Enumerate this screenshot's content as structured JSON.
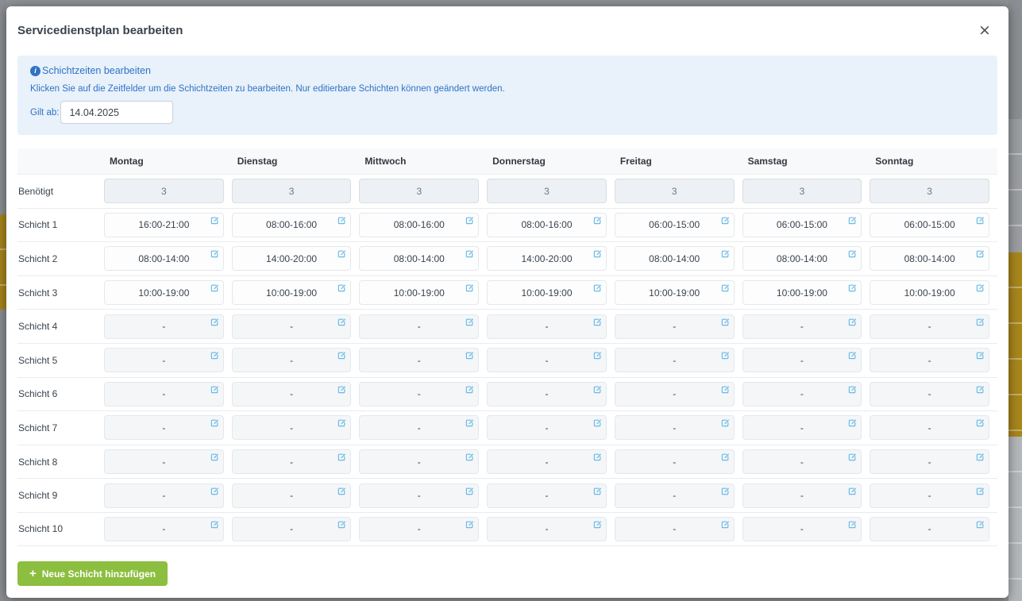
{
  "modal": {
    "title": "Servicedienstplan bearbeiten",
    "close_symbol": "×"
  },
  "info_box": {
    "icon_glyph": "i",
    "heading": "Schichtzeiten bearbeiten",
    "description": "Klicken Sie auf die Zeitfelder um die Schichtzeiten zu bearbeiten. Nur editierbare Schichten können geändert werden.",
    "valid_from_label": "Gilt ab:",
    "valid_from_value": "14.04.2025"
  },
  "table": {
    "days": [
      "Montag",
      "Dienstag",
      "Mittwoch",
      "Donnerstag",
      "Freitag",
      "Samstag",
      "Sonntag"
    ],
    "required_row": {
      "label": "Benötigt",
      "values": [
        "3",
        "3",
        "3",
        "3",
        "3",
        "3",
        "3"
      ]
    },
    "shift_rows": [
      {
        "label": "Schicht 1",
        "values": [
          "16:00-21:00",
          "08:00-16:00",
          "08:00-16:00",
          "08:00-16:00",
          "06:00-15:00",
          "06:00-15:00",
          "06:00-15:00"
        ]
      },
      {
        "label": "Schicht 2",
        "values": [
          "08:00-14:00",
          "14:00-20:00",
          "08:00-14:00",
          "14:00-20:00",
          "08:00-14:00",
          "08:00-14:00",
          "08:00-14:00"
        ]
      },
      {
        "label": "Schicht 3",
        "values": [
          "10:00-19:00",
          "10:00-19:00",
          "10:00-19:00",
          "10:00-19:00",
          "10:00-19:00",
          "10:00-19:00",
          "10:00-19:00"
        ]
      },
      {
        "label": "Schicht 4",
        "values": [
          "-",
          "-",
          "-",
          "-",
          "-",
          "-",
          "-"
        ]
      },
      {
        "label": "Schicht 5",
        "values": [
          "-",
          "-",
          "-",
          "-",
          "-",
          "-",
          "-"
        ]
      },
      {
        "label": "Schicht 6",
        "values": [
          "-",
          "-",
          "-",
          "-",
          "-",
          "-",
          "-"
        ]
      },
      {
        "label": "Schicht 7",
        "values": [
          "-",
          "-",
          "-",
          "-",
          "-",
          "-",
          "-"
        ]
      },
      {
        "label": "Schicht 8",
        "values": [
          "-",
          "-",
          "-",
          "-",
          "-",
          "-",
          "-"
        ]
      },
      {
        "label": "Schicht 9",
        "values": [
          "-",
          "-",
          "-",
          "-",
          "-",
          "-",
          "-"
        ]
      },
      {
        "label": "Schicht 10",
        "values": [
          "-",
          "-",
          "-",
          "-",
          "-",
          "-",
          "-"
        ]
      }
    ]
  },
  "actions": {
    "add_shift_plus": "+",
    "add_shift_label": "Neue Schicht hinzufügen"
  },
  "colors": {
    "accent_blue": "#2e73c5",
    "edit_icon_blue": "#6ab9e5",
    "button_green": "#8cbe3f",
    "backdrop_gold": "#a8861d",
    "info_box_bg": "#e9f1fb",
    "header_row_bg": "#f8f9fa"
  }
}
